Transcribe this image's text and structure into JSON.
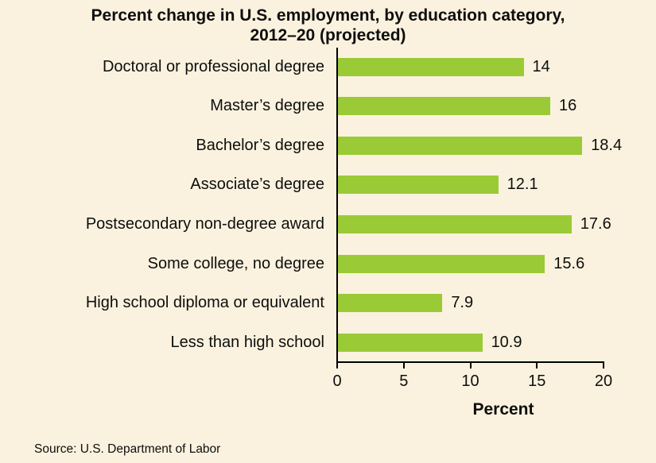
{
  "page": {
    "background": "#FAF2DE",
    "title_line1": "Percent change in U.S. employment, by education category,",
    "title_line2": "2012–20 (projected)",
    "source": "Source: U.S. Department of Labor"
  },
  "chart_data": {
    "type": "bar",
    "orientation": "horizontal",
    "title": "Percent change in U.S. employment, by education category, 2012–20 (projected)",
    "xlabel": "Percent",
    "xlim": [
      0,
      20
    ],
    "xticks": [
      0,
      5,
      10,
      15,
      20
    ],
    "grid": false,
    "legend": null,
    "categories": [
      "Doctoral or professional degree",
      "Master’s degree",
      "Bachelor’s degree",
      "Associate’s degree",
      "Postsecondary non-degree award",
      "Some college, no degree",
      "High school diploma or equivalent",
      "Less than high school"
    ],
    "values": [
      14,
      16,
      18.4,
      12.1,
      17.6,
      15.6,
      7.9,
      10.9
    ],
    "value_labels": [
      "14",
      "16",
      "18.4",
      "12.1",
      "17.6",
      "15.6",
      "7.9",
      "10.9"
    ],
    "bar_color": "#9ACB37",
    "axis_color": "#000000",
    "text_color": "#0e0e0e"
  }
}
